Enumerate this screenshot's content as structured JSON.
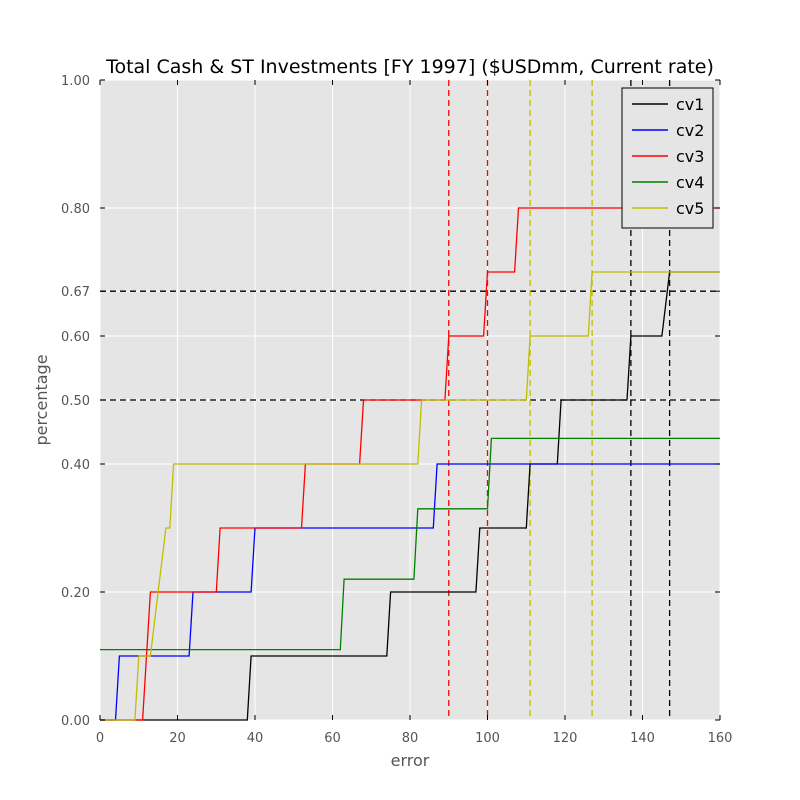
{
  "chart_data": {
    "type": "line",
    "title": "Total Cash & ST Investments [FY 1997] ($USDmm, Current rate)",
    "xlabel": "error",
    "ylabel": "percentage",
    "xlim": [
      0,
      160
    ],
    "ylim": [
      0,
      1
    ],
    "xticks": [
      0,
      20,
      40,
      60,
      80,
      100,
      120,
      140,
      160
    ],
    "xtick_labels": [
      "0",
      "20",
      "40",
      "60",
      "80",
      "100",
      "120",
      "140",
      "160"
    ],
    "yticks": [
      0,
      0.2,
      0.4,
      0.5,
      0.6,
      0.67,
      0.8,
      1.0
    ],
    "ytick_labels": [
      "0.00",
      "0.20",
      "0.40",
      "0.50",
      "0.60",
      "0.67",
      "0.80",
      "1.00"
    ],
    "grid": true,
    "legend_position": "top-right",
    "series": [
      {
        "name": "cv1",
        "color": "#000000",
        "steps": [
          [
            0,
            0
          ],
          [
            38,
            0
          ],
          [
            39,
            0.1
          ],
          [
            74,
            0.1
          ],
          [
            75,
            0.2
          ],
          [
            97,
            0.2
          ],
          [
            98,
            0.3
          ],
          [
            110,
            0.3
          ],
          [
            111,
            0.4
          ],
          [
            118,
            0.4
          ],
          [
            119,
            0.5
          ],
          [
            136,
            0.5
          ],
          [
            137,
            0.6
          ],
          [
            145,
            0.6
          ],
          [
            147,
            0.7
          ],
          [
            160,
            0.7
          ]
        ]
      },
      {
        "name": "cv2",
        "color": "#0000ff",
        "steps": [
          [
            0,
            0
          ],
          [
            4,
            0
          ],
          [
            5,
            0.1
          ],
          [
            23,
            0.1
          ],
          [
            24,
            0.2
          ],
          [
            39,
            0.2
          ],
          [
            40,
            0.3
          ],
          [
            86,
            0.3
          ],
          [
            87,
            0.4
          ],
          [
            160,
            0.4
          ]
        ]
      },
      {
        "name": "cv3",
        "color": "#ff0000",
        "steps": [
          [
            0,
            0
          ],
          [
            11,
            0
          ],
          [
            13,
            0.2
          ],
          [
            30,
            0.2
          ],
          [
            31,
            0.3
          ],
          [
            52,
            0.3
          ],
          [
            53,
            0.4
          ],
          [
            67,
            0.4
          ],
          [
            68,
            0.5
          ],
          [
            89,
            0.5
          ],
          [
            90,
            0.6
          ],
          [
            99,
            0.6
          ],
          [
            100,
            0.7
          ],
          [
            107,
            0.7
          ],
          [
            108,
            0.8
          ],
          [
            160,
            0.8
          ]
        ]
      },
      {
        "name": "cv4",
        "color": "#008000",
        "steps": [
          [
            0,
            0.11
          ],
          [
            62,
            0.11
          ],
          [
            63,
            0.22
          ],
          [
            81,
            0.22
          ],
          [
            82,
            0.33
          ],
          [
            100,
            0.33
          ],
          [
            101,
            0.44
          ],
          [
            160,
            0.44
          ]
        ]
      },
      {
        "name": "cv5",
        "color": "#bfbf00",
        "steps": [
          [
            0,
            0
          ],
          [
            9,
            0
          ],
          [
            10,
            0.1
          ],
          [
            13,
            0.1
          ],
          [
            15,
            0.2
          ],
          [
            17,
            0.3
          ],
          [
            18,
            0.3
          ],
          [
            19,
            0.4
          ],
          [
            82,
            0.4
          ],
          [
            83,
            0.5
          ],
          [
            110,
            0.5
          ],
          [
            111,
            0.6
          ],
          [
            126,
            0.6
          ],
          [
            127,
            0.7
          ],
          [
            160,
            0.7
          ]
        ]
      }
    ],
    "reference_lines": {
      "horizontal": [
        {
          "y": 0.5,
          "color": "#000000"
        },
        {
          "y": 0.67,
          "color": "#000000"
        }
      ],
      "vertical": [
        {
          "x": 90,
          "color": "#ff0000"
        },
        {
          "x": 100,
          "color": "#ff0000"
        },
        {
          "x": 111,
          "color": "#bfbf00"
        },
        {
          "x": 127,
          "color": "#bfbf00"
        },
        {
          "x": 137,
          "color": "#000000"
        },
        {
          "x": 147,
          "color": "#000000"
        }
      ]
    }
  }
}
